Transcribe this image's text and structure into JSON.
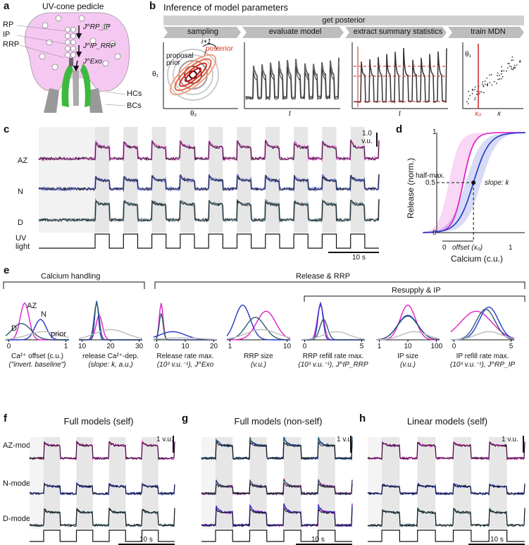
{
  "panels": {
    "a": "a",
    "b": "b",
    "c": "c",
    "d": "d",
    "e": "e",
    "f": "f",
    "g": "g",
    "h": "h"
  },
  "panel_a": {
    "title": "UV-cone pedicle",
    "labels": [
      "RP",
      "IP",
      "RRP",
      "HCs",
      "BCs"
    ],
    "arrows": [
      "J^RP_IP",
      "J^IP_RRP",
      "J^Exo"
    ]
  },
  "panel_b": {
    "title": "Inference of model parameters",
    "banner": "get posterior",
    "steps": [
      "sampling",
      "evaluate model",
      "extract summary statistics",
      "train MDN"
    ],
    "inset_labels": {
      "proposal": "proposal",
      "prior": "prior",
      "posterior": "posterior",
      "i": "i",
      "i1": "i+1",
      "theta1": "θ₁",
      "theta2": "θ₂",
      "t": "t",
      "x0": "x₀",
      "x": "x"
    }
  },
  "panel_c": {
    "rows": [
      "AZ",
      "N",
      "D"
    ],
    "stim": "UV light",
    "scale_y": "1.0 v.u.",
    "scale_x": "10 s",
    "colors": {
      "AZ": "#e020c8",
      "N": "#2236c8",
      "D": "#2d5a6e",
      "data": "#111111"
    }
  },
  "panel_d": {
    "ylabel": "Release (norm.)",
    "xlabel": "Calcium (c.u.)",
    "halfmax": "half-max.",
    "slope": "slope: k",
    "offset": "offset (x₀)",
    "yticks": [
      "0",
      "0.5",
      "1"
    ],
    "xticks": [
      "0",
      "1"
    ]
  },
  "panel_e": {
    "groups": [
      "Calcium handling",
      "Release & RRP",
      "Resupply & IP"
    ],
    "legend": {
      "AZ": "AZ",
      "N": "N",
      "D": "D",
      "prior": "prior"
    },
    "subplots": [
      {
        "label1": "Ca²⁺ offset (c.u.)",
        "label2": "(\"invert. baseline\")",
        "ticks": [
          "0",
          "1"
        ]
      },
      {
        "label1": "release Ca²⁺-dep.",
        "label2": "(slope: k, a.u.)",
        "ticks": [
          "10",
          "20",
          "30"
        ]
      },
      {
        "label1": "Release rate max.",
        "label2": "(10³ v.u.⁻¹), J^Exo",
        "ticks": [
          "0",
          "10",
          "20"
        ]
      },
      {
        "label1": "RRP size",
        "label2": "(v.u.)",
        "ticks": [
          "1",
          "10"
        ]
      },
      {
        "label1": "RRP refill rate max.",
        "label2": "(10³ v.u.⁻¹), J^IP_RRP",
        "ticks": [
          "0",
          "5"
        ]
      },
      {
        "label1": "IP size",
        "label2": "(v.u.)",
        "ticks": [
          "1",
          "10",
          "100"
        ]
      },
      {
        "label1": "IP refill rate max.",
        "label2": "(10³ v.u.⁻¹), J^RP_IP",
        "ticks": [
          "0",
          "5"
        ]
      }
    ]
  },
  "panel_fgh": {
    "titles": [
      "Full models (self)",
      "Full models (non-self)",
      "Linear models (self)"
    ],
    "rows": [
      "AZ-model",
      "N-model",
      "D-model"
    ],
    "scale_y": "1 v.u.",
    "scale_x": "10 s"
  }
}
